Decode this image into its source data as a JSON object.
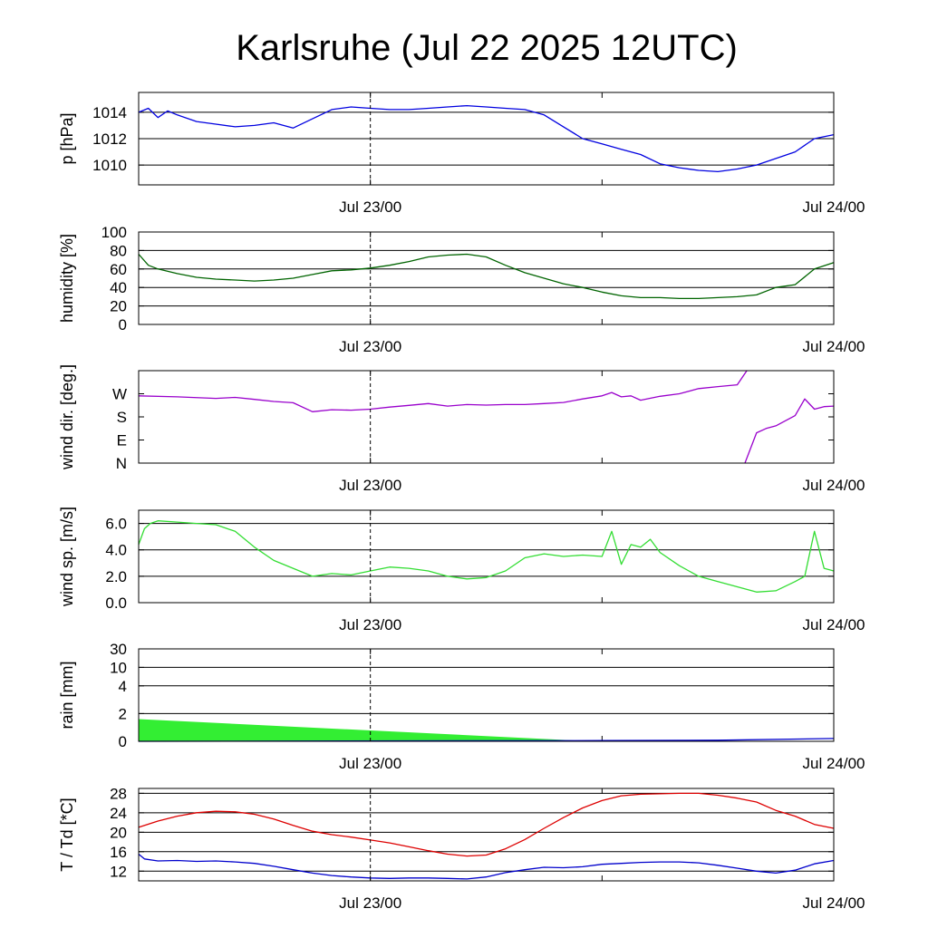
{
  "title": "Karlsruhe (Jul 22 2025 12UTC)",
  "chart_data": {
    "type": "line",
    "x_ticks": [
      "Jul 23/00",
      "Jul 24/00"
    ],
    "x_range": [
      "Jul 22 12UTC",
      "Jul 24 00UTC"
    ],
    "panels": [
      {
        "id": "pressure",
        "ylabel": "p [hPa]",
        "ylim": [
          1008.5,
          1015.5
        ],
        "ticks": [
          {
            "v": 1010,
            "label": "1010"
          },
          {
            "v": 1012,
            "label": "1012"
          },
          {
            "v": 1014,
            "label": "1014"
          }
        ],
        "grid": true,
        "series": [
          {
            "color": "#0000e0",
            "x": [
              0,
              0.5,
              1,
              1.5,
              2,
              3,
              4,
              5,
              6,
              7,
              8,
              9,
              10,
              11,
              12,
              13,
              14,
              15,
              16,
              17,
              18,
              19,
              20,
              21,
              22,
              23,
              24,
              25,
              26,
              27,
              28,
              29,
              30,
              31,
              32,
              33,
              34,
              35,
              36
            ],
            "y": [
              1014.0,
              1014.3,
              1013.6,
              1014.1,
              1013.8,
              1013.3,
              1013.1,
              1012.9,
              1013.0,
              1013.2,
              1012.8,
              1013.5,
              1014.2,
              1014.4,
              1014.3,
              1014.2,
              1014.2,
              1014.3,
              1014.4,
              1014.5,
              1014.4,
              1014.3,
              1014.2,
              1013.8,
              1012.9,
              1012.0,
              1011.6,
              1011.2,
              1010.8,
              1010.1,
              1009.8,
              1009.6,
              1009.5,
              1009.7,
              1010.0,
              1010.5,
              1011.0,
              1012.0,
              1012.3
            ]
          }
        ]
      },
      {
        "id": "humidity",
        "ylabel": "humidity [%]",
        "ylim": [
          0,
          100
        ],
        "ticks": [
          {
            "v": 0,
            "label": "0"
          },
          {
            "v": 20,
            "label": "20"
          },
          {
            "v": 40,
            "label": "40"
          },
          {
            "v": 60,
            "label": "60"
          },
          {
            "v": 80,
            "label": "80"
          },
          {
            "v": 100,
            "label": "100"
          }
        ],
        "grid": true,
        "series": [
          {
            "color": "#006400",
            "x": [
              0,
              0.5,
              1,
              2,
              3,
              4,
              5,
              6,
              7,
              8,
              9,
              10,
              11,
              12,
              13,
              14,
              15,
              16,
              17,
              18,
              19,
              20,
              21,
              22,
              23,
              24,
              25,
              26,
              27,
              28,
              29,
              30,
              31,
              32,
              33,
              34,
              35,
              36
            ],
            "y": [
              76,
              64,
              60,
              55,
              51,
              49,
              48,
              47,
              48,
              50,
              54,
              58,
              59,
              61,
              64,
              68,
              73,
              75,
              76,
              73,
              64,
              56,
              50,
              44,
              40,
              35,
              31,
              29,
              29,
              28,
              28,
              29,
              30,
              32,
              40,
              43,
              60,
              67
            ]
          }
        ]
      },
      {
        "id": "wind-direction",
        "ylabel": "wind dir. [deg.]",
        "ylim": [
          0,
          360
        ],
        "ticks": [
          {
            "v": 0,
            "label": "N"
          },
          {
            "v": 90,
            "label": "E"
          },
          {
            "v": 180,
            "label": "S"
          },
          {
            "v": 270,
            "label": "W"
          }
        ],
        "grid": false,
        "series": [
          {
            "color": "#9900cc",
            "x": [
              0,
              2,
              4,
              5,
              6,
              7,
              8,
              9,
              10,
              11,
              12,
              13,
              14,
              15,
              16,
              17,
              18,
              19,
              20,
              21,
              22,
              23,
              24,
              24.5,
              25,
              25.5,
              26,
              27,
              28,
              29,
              30,
              31,
              31.5
            ],
            "y": [
              262,
              258,
              252,
              256,
              248,
              240,
              235,
              200,
              208,
              206,
              210,
              218,
              225,
              232,
              222,
              228,
              226,
              228,
              228,
              232,
              236,
              250,
              262,
              275,
              258,
              262,
              245,
              260,
              270,
              290,
              298,
              305,
              360
            ]
          },
          {
            "color": "#9900cc",
            "x": [
              31.4,
              32,
              32.5,
              33,
              34,
              34.5,
              35,
              35.5,
              36
            ],
            "y": [
              0,
              118,
              135,
              145,
              185,
              250,
              210,
              220,
              222
            ]
          }
        ]
      },
      {
        "id": "wind-speed",
        "ylabel": "wind sp. [m/s]",
        "ylim": [
          0,
          7
        ],
        "ticks": [
          {
            "v": 0,
            "label": "0.0"
          },
          {
            "v": 2,
            "label": "2.0"
          },
          {
            "v": 4,
            "label": "4.0"
          },
          {
            "v": 6,
            "label": "6.0"
          }
        ],
        "grid": true,
        "series": [
          {
            "color": "#33dd33",
            "x": [
              0,
              0.3,
              0.6,
              1,
              2,
              3,
              4,
              5,
              6,
              7,
              8,
              9,
              10,
              11,
              12,
              13,
              14,
              15,
              16,
              17,
              18,
              19,
              20,
              21,
              22,
              23,
              24,
              24.5,
              25,
              25.5,
              26,
              26.5,
              27,
              28,
              29,
              30,
              31,
              32,
              33,
              34,
              34.5,
              35,
              35.5,
              36
            ],
            "y": [
              4.4,
              5.6,
              6.0,
              6.2,
              6.1,
              6.0,
              5.9,
              5.4,
              4.2,
              3.2,
              2.6,
              2.0,
              2.2,
              2.1,
              2.4,
              2.7,
              2.6,
              2.4,
              2.0,
              1.8,
              1.9,
              2.4,
              3.4,
              3.7,
              3.5,
              3.6,
              3.5,
              5.4,
              2.9,
              4.4,
              4.2,
              4.8,
              3.8,
              2.8,
              2.0,
              1.6,
              1.2,
              0.8,
              0.9,
              1.6,
              2.0,
              5.4,
              2.6,
              2.4
            ]
          }
        ]
      },
      {
        "id": "rain",
        "ylabel": "rain [mm]",
        "scale": "custom",
        "ylim": [
          0,
          30
        ],
        "ticks": [
          {
            "v": 0,
            "label": "0"
          },
          {
            "v": 2,
            "label": "2"
          },
          {
            "v": 4,
            "label": "4"
          },
          {
            "v": 10,
            "label": "10"
          },
          {
            "v": 30,
            "label": "30"
          }
        ],
        "grid": true,
        "series": [
          {
            "color": "#33ee33",
            "kind": "area",
            "x": [
              0,
              23.5
            ],
            "y": [
              1.6,
              0.0
            ]
          },
          {
            "color": "#0000cc",
            "x": [
              0,
              24,
              30,
              36
            ],
            "y": [
              0.0,
              0.05,
              0.08,
              0.2
            ]
          }
        ]
      },
      {
        "id": "temperature",
        "ylabel": "T / Td [*C]",
        "ylim": [
          10,
          29
        ],
        "ticks": [
          {
            "v": 12,
            "label": "12"
          },
          {
            "v": 16,
            "label": "16"
          },
          {
            "v": 20,
            "label": "20"
          },
          {
            "v": 24,
            "label": "24"
          },
          {
            "v": 28,
            "label": "28"
          }
        ],
        "grid": true,
        "series": [
          {
            "color": "#dd0000",
            "x": [
              0,
              1,
              2,
              3,
              4,
              5,
              6,
              7,
              8,
              9,
              10,
              11,
              12,
              13,
              14,
              15,
              16,
              17,
              18,
              19,
              20,
              21,
              22,
              23,
              24,
              25,
              26,
              27,
              28,
              29,
              30,
              31,
              32,
              33,
              34,
              35,
              36
            ],
            "y": [
              21.0,
              22.3,
              23.3,
              24.0,
              24.3,
              24.2,
              23.7,
              22.7,
              21.4,
              20.2,
              19.5,
              19.0,
              18.4,
              17.8,
              17.0,
              16.2,
              15.5,
              15.1,
              15.3,
              16.6,
              18.5,
              20.8,
              23.0,
              25.0,
              26.5,
              27.5,
              27.8,
              27.9,
              28.0,
              28.0,
              27.6,
              27.0,
              26.2,
              24.5,
              23.3,
              21.6,
              20.8
            ]
          },
          {
            "color": "#0000cc",
            "x": [
              0,
              0.3,
              1,
              2,
              3,
              4,
              5,
              6,
              7,
              8,
              9,
              10,
              11,
              12,
              13,
              14,
              15,
              16,
              17,
              18,
              19,
              20,
              21,
              22,
              23,
              24,
              25,
              26,
              27,
              28,
              29,
              30,
              31,
              32,
              33,
              34,
              35,
              36
            ],
            "y": [
              15.5,
              14.5,
              14.1,
              14.2,
              14.0,
              14.1,
              13.9,
              13.6,
              13.0,
              12.3,
              11.6,
              11.1,
              10.8,
              10.6,
              10.5,
              10.6,
              10.6,
              10.5,
              10.4,
              10.8,
              11.7,
              12.3,
              12.8,
              12.7,
              12.9,
              13.4,
              13.6,
              13.8,
              13.9,
              13.9,
              13.7,
              13.2,
              12.6,
              12.0,
              11.6,
              12.2,
              13.5,
              14.2
            ]
          }
        ]
      }
    ]
  }
}
